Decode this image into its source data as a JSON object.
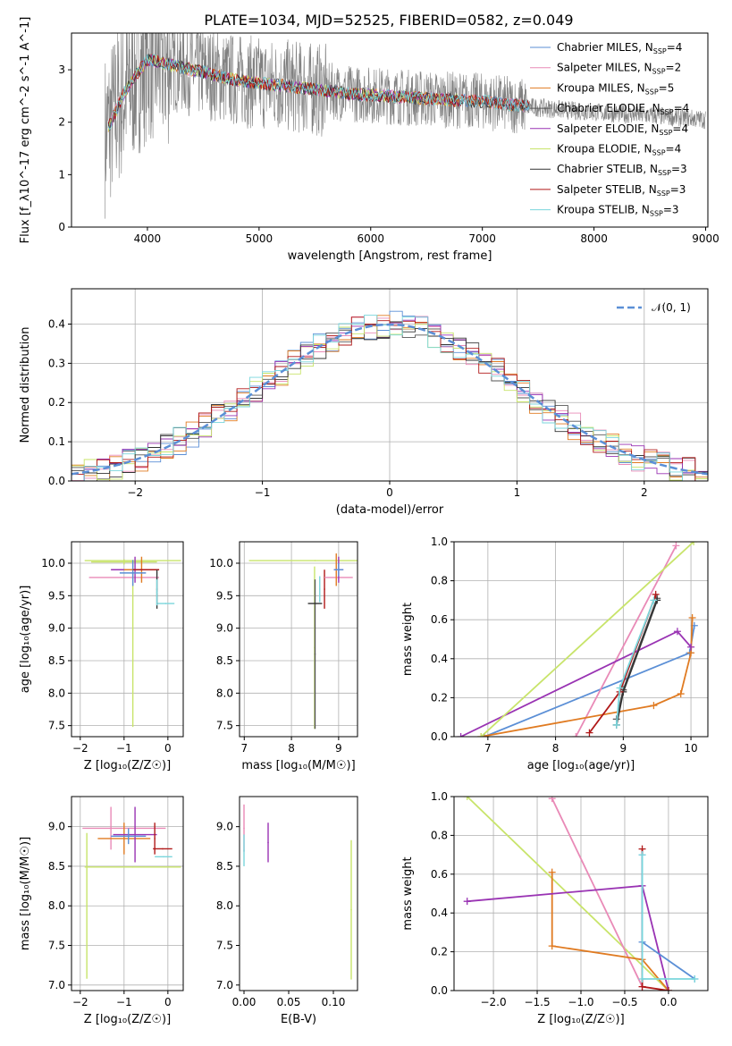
{
  "figure": {
    "title": "PLATE=1034, MJD=52525, FIBERID=0582, z=0.049",
    "models": [
      {
        "name": "Chabrier MILES",
        "nssp": "4",
        "color": "#5b8fd6"
      },
      {
        "name": "Salpeter MILES",
        "nssp": "2",
        "color": "#e98ab7"
      },
      {
        "name": "Kroupa MILES",
        "nssp": "5",
        "color": "#e07b22"
      },
      {
        "name": "Chabrier ELODIE",
        "nssp": "4",
        "color": "#555555"
      },
      {
        "name": "Salpeter ELODIE",
        "nssp": "4",
        "color": "#9933b3"
      },
      {
        "name": "Kroupa ELODIE",
        "nssp": "4",
        "color": "#c8e46a"
      },
      {
        "name": "Chabrier STELIB",
        "nssp": "3",
        "color": "#333333"
      },
      {
        "name": "Salpeter STELIB",
        "nssp": "3",
        "color": "#b01818"
      },
      {
        "name": "Kroupa STELIB",
        "nssp": "3",
        "color": "#7ad6dc"
      }
    ]
  },
  "chart_data": [
    {
      "id": "spectrum",
      "type": "line",
      "xlabel": "wavelength [Angstrom, rest frame]",
      "ylabel": "Flux [f_λ10^-17 erg cm^-2 s^-1 A^-1]",
      "xlim": [
        3320,
        9020
      ],
      "ylim": [
        0,
        3.7
      ],
      "xticks": [
        4000,
        5000,
        6000,
        7000,
        8000,
        9000
      ],
      "yticks": [
        0,
        1,
        2,
        3
      ],
      "grid": false,
      "legend_position": "top-right",
      "data_color": "#808080",
      "data_x_range": [
        3620,
        9000
      ],
      "continuum": {
        "x": [
          3650,
          3800,
          4000,
          4200,
          4500,
          4800,
          5200,
          5800,
          6500,
          7000,
          7400,
          7800,
          8300,
          8700,
          9000
        ],
        "y": [
          1.9,
          2.6,
          3.2,
          3.1,
          2.95,
          2.8,
          2.7,
          2.55,
          2.45,
          2.4,
          2.3,
          2.22,
          2.15,
          2.1,
          2.05
        ]
      }
    },
    {
      "id": "residuals",
      "type": "line",
      "xlabel": "(data-model)/error",
      "ylabel": "Normed distribution",
      "xlim": [
        -2.5,
        2.5
      ],
      "ylim": [
        0,
        0.49
      ],
      "xticks": [
        -2,
        -1,
        0,
        1,
        2
      ],
      "yticks": [
        0.0,
        0.1,
        0.2,
        0.3,
        0.4
      ],
      "grid": true,
      "legend_position": "top-right",
      "normal_label": "𝒩(0, 1)",
      "normal_color": "#5b8fd6"
    },
    {
      "id": "age-vs-Z",
      "type": "scatter",
      "xlabel": "Z [log₁₀(Z/Z☉)]",
      "ylabel": "age [log₁₀(age/yr)]",
      "xlim": [
        -2.2,
        0.35
      ],
      "ylim": [
        7.33,
        10.33
      ],
      "xticks": [
        -2,
        -1,
        0
      ],
      "yticks": [
        7.5,
        8.0,
        8.5,
        9.0,
        9.5,
        10.0
      ],
      "grid": true,
      "points": [
        {
          "model": 5,
          "x": -0.8,
          "xerr": 1.1,
          "y": 10.04,
          "yerr": 0.0,
          "ylo": 2.56
        },
        {
          "model": 5,
          "x": -1.0,
          "xerr": 0.75,
          "y": 10.02,
          "yerr": 0.04
        },
        {
          "model": 1,
          "x": -1.0,
          "xerr": 0.8,
          "y": 9.78,
          "yerr": 0.0
        },
        {
          "model": 4,
          "x": -0.75,
          "xerr": 0.55,
          "y": 9.9,
          "yerr": 0.2
        },
        {
          "model": 2,
          "x": -0.6,
          "xerr": 0.4,
          "y": 9.9,
          "yerr": 0.2
        },
        {
          "model": 0,
          "x": -0.8,
          "xerr": 0.3,
          "y": 9.85,
          "yerr": 0.2
        },
        {
          "model": 7,
          "x": -0.5,
          "xerr": 0.3,
          "y": 9.9,
          "yerr": 0.0
        },
        {
          "model": 8,
          "x": -0.05,
          "xerr": 0.2,
          "y": 9.38,
          "yerr": 0.0
        },
        {
          "model": 6,
          "x": -0.25,
          "xerr": 0.0,
          "y": 9.6,
          "yerr": 0.3
        },
        {
          "model": 8,
          "x": -0.25,
          "xerr": 0.0,
          "y": 9.55,
          "yerr": 0.2
        }
      ]
    },
    {
      "id": "age-vs-mass",
      "type": "scatter",
      "xlabel": "mass [log₁₀(M/M☉)]",
      "ylabel": "",
      "xlim": [
        6.9,
        9.4
      ],
      "ylim": [
        7.33,
        10.33
      ],
      "xticks": [
        7,
        8,
        9
      ],
      "yticks": [
        7.5,
        8.0,
        8.5,
        9.0,
        9.5,
        10.0
      ],
      "grid": true,
      "points": [
        {
          "model": 5,
          "x": 8.5,
          "xerr": 1.4,
          "y": 10.04,
          "yerr": 0.0
        },
        {
          "model": 5,
          "x": 8.49,
          "xerr": 0.0,
          "y": 8.7,
          "yerr": 1.25
        },
        {
          "model": 3,
          "x": 8.5,
          "xerr": 0.0,
          "y": 8.6,
          "yerr": 1.15
        },
        {
          "model": 6,
          "x": 8.5,
          "xerr": 0.15,
          "y": 9.38,
          "yerr": 0.0
        },
        {
          "model": 7,
          "x": 8.7,
          "xerr": 0.0,
          "y": 9.6,
          "yerr": 0.3
        },
        {
          "model": 8,
          "x": 8.6,
          "xerr": 0.0,
          "y": 9.6,
          "yerr": 0.2
        },
        {
          "model": 1,
          "x": 9.0,
          "xerr": 0.3,
          "y": 9.78,
          "yerr": 0.0
        },
        {
          "model": 2,
          "x": 8.95,
          "xerr": 0.0,
          "y": 9.9,
          "yerr": 0.25
        },
        {
          "model": 4,
          "x": 9.0,
          "xerr": 0.1,
          "y": 9.9,
          "yerr": 0.2
        },
        {
          "model": 0,
          "x": 9.0,
          "xerr": 0.1,
          "y": 9.9,
          "yerr": 0.1
        }
      ]
    },
    {
      "id": "mass-weight-vs-age",
      "type": "line",
      "xlabel": "age [log₁₀(age/yr)]",
      "ylabel": "mass weight",
      "xlim": [
        6.5,
        10.25
      ],
      "ylim": [
        0.0,
        1.0
      ],
      "xticks": [
        7,
        8,
        9,
        10
      ],
      "yticks": [
        0.0,
        0.2,
        0.4,
        0.6,
        0.8,
        1.0
      ],
      "grid": true,
      "series": [
        {
          "model": 0,
          "x": [
            6.95,
            9.98,
            10.05
          ],
          "y": [
            0.0,
            0.43,
            0.57
          ]
        },
        {
          "model": 1,
          "x": [
            8.3,
            9.78
          ],
          "y": [
            0.0,
            0.98
          ]
        },
        {
          "model": 2,
          "x": [
            6.9,
            9.45,
            9.85,
            10.0,
            10.02
          ],
          "y": [
            0.0,
            0.16,
            0.22,
            0.43,
            0.61
          ]
        },
        {
          "model": 3,
          "x": [
            8.9,
            9.0,
            9.5
          ],
          "y": [
            0.09,
            0.24,
            0.71
          ]
        },
        {
          "model": 4,
          "x": [
            6.6,
            9.8,
            10.0
          ],
          "y": [
            0.0,
            0.54,
            0.46
          ]
        },
        {
          "model": 5,
          "x": [
            6.9,
            10.04
          ],
          "y": [
            0.0,
            1.0
          ]
        },
        {
          "model": 6,
          "x": [
            8.9,
            9.0,
            9.5
          ],
          "y": [
            0.06,
            0.23,
            0.7
          ]
        },
        {
          "model": 7,
          "x": [
            8.5,
            8.95,
            9.48
          ],
          "y": [
            0.02,
            0.23,
            0.73
          ]
        },
        {
          "model": 8,
          "x": [
            8.9,
            8.95,
            9.45
          ],
          "y": [
            0.06,
            0.25,
            0.7
          ]
        }
      ]
    },
    {
      "id": "mass-vs-Z",
      "type": "scatter",
      "xlabel": "Z [log₁₀(Z/Z☉)]",
      "ylabel": "mass [log₁₀(M/M☉)]",
      "xlim": [
        -2.2,
        0.35
      ],
      "ylim": [
        6.93,
        9.38
      ],
      "xticks": [
        -2,
        -1,
        0
      ],
      "yticks": [
        7.0,
        7.5,
        8.0,
        8.5,
        9.0
      ],
      "grid": true,
      "points": [
        {
          "model": 5,
          "x": -0.8,
          "xerr": 1.1,
          "y": 8.49,
          "yerr": 0.0
        },
        {
          "model": 5,
          "x": -1.85,
          "xerr": 0.0,
          "y": 8.0,
          "yerr": 0.92
        },
        {
          "model": 1,
          "x": -1.0,
          "xerr": 0.95,
          "y": 8.98,
          "yerr": 0.0
        },
        {
          "model": 1,
          "x": -1.3,
          "xerr": 0.0,
          "y": 8.98,
          "yerr": 0.27
        },
        {
          "model": 2,
          "x": -1.0,
          "xerr": 0.6,
          "y": 8.85,
          "yerr": 0.2
        },
        {
          "model": 4,
          "x": -0.75,
          "xerr": 0.5,
          "y": 8.9,
          "yerr": 0.35
        },
        {
          "model": 0,
          "x": -0.9,
          "xerr": 0.4,
          "y": 8.88,
          "yerr": 0.1
        },
        {
          "model": 7,
          "x": -0.12,
          "xerr": 0.22,
          "y": 8.72,
          "yerr": 0.0
        },
        {
          "model": 7,
          "x": -0.3,
          "xerr": 0.0,
          "y": 8.85,
          "yerr": 0.2
        },
        {
          "model": 8,
          "x": -0.1,
          "xerr": 0.2,
          "y": 8.62,
          "yerr": 0.0
        }
      ]
    },
    {
      "id": "mass-vs-EBV",
      "type": "scatter",
      "xlabel": "E(B-V)",
      "ylabel": "",
      "xlim": [
        -0.005,
        0.127
      ],
      "ylim": [
        6.93,
        9.38
      ],
      "xticks": [
        0.0,
        0.05,
        0.1
      ],
      "yticks": [
        7.0,
        7.5,
        8.0,
        8.5,
        9.0
      ],
      "grid": false,
      "points": [
        {
          "model": 1,
          "x": 0.0,
          "xerr": 0.0,
          "y": 8.98,
          "yerr": 0.3
        },
        {
          "model": 8,
          "x": 0.0,
          "xerr": 0.0,
          "y": 8.7,
          "yerr": 0.2
        },
        {
          "model": 4,
          "x": 0.027,
          "xerr": 0.0,
          "y": 8.8,
          "yerr": 0.25
        },
        {
          "model": 5,
          "x": 0.12,
          "xerr": 0.0,
          "y": 7.95,
          "yerr": 0.88
        }
      ]
    },
    {
      "id": "mass-weight-vs-Z",
      "type": "line",
      "xlabel": "Z [log₁₀(Z/Z☉)]",
      "ylabel": "mass weight",
      "xlim": [
        -2.45,
        0.45
      ],
      "ylim": [
        0.0,
        1.0
      ],
      "xticks": [
        -2.0,
        -1.5,
        -1.0,
        -0.5,
        0.0
      ],
      "yticks": [
        0.0,
        0.2,
        0.4,
        0.6,
        0.8,
        1.0
      ],
      "grid": true,
      "series": [
        {
          "model": 5,
          "x": [
            -2.3,
            0.0
          ],
          "y": [
            1.0,
            0.0
          ]
        },
        {
          "model": 1,
          "x": [
            -1.33,
            -0.3
          ],
          "y": [
            0.99,
            0.02
          ]
        },
        {
          "model": 2,
          "x": [
            -1.33,
            -1.33,
            -0.3,
            0.0
          ],
          "y": [
            0.61,
            0.23,
            0.16,
            0.0
          ]
        },
        {
          "model": 4,
          "x": [
            -2.3,
            -0.3,
            0.0
          ],
          "y": [
            0.46,
            0.54,
            0.0
          ]
        },
        {
          "model": 7,
          "x": [
            -0.3,
            -0.3,
            0.0
          ],
          "y": [
            0.73,
            0.02,
            0.0
          ]
        },
        {
          "model": 0,
          "x": [
            -0.3,
            -0.3,
            0.3
          ],
          "y": [
            0.7,
            0.25,
            0.06
          ]
        },
        {
          "model": 8,
          "x": [
            -0.3,
            -0.3,
            0.3
          ],
          "y": [
            0.7,
            0.06,
            0.06
          ]
        }
      ]
    }
  ]
}
